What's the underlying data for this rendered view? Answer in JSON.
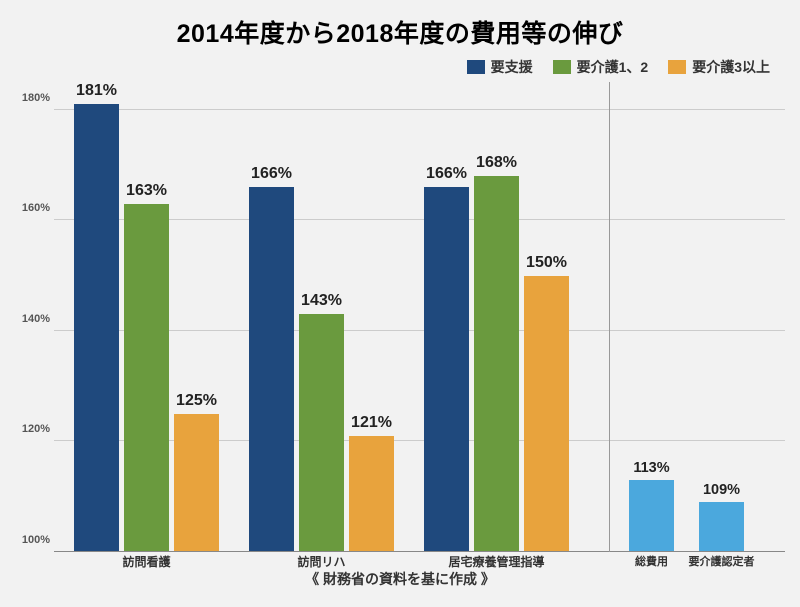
{
  "title": "2014年度から2018年度の費用等の伸び",
  "footer": "《 財務省の資料を基に作成 》",
  "chart": {
    "type": "bar",
    "background_color": "#f2f2f2",
    "grid_color": "#cccccc",
    "baseline_color": "#888888",
    "text_color": "#333333",
    "ylim": [
      100,
      185
    ],
    "yticks": [
      100,
      120,
      140,
      160,
      180
    ],
    "ytick_labels": [
      "100%",
      "120%",
      "140%",
      "160%",
      "180%"
    ],
    "legend": [
      {
        "label": "要支援",
        "color": "#1f497d"
      },
      {
        "label": "要介護1、2",
        "color": "#6a9a3e"
      },
      {
        "label": "要介護3以上",
        "color": "#e8a33d"
      }
    ],
    "groups": [
      {
        "label": "訪問看護",
        "bars": [
          {
            "value": 181,
            "label": "181%",
            "color": "#1f497d"
          },
          {
            "value": 163,
            "label": "163%",
            "color": "#6a9a3e"
          },
          {
            "value": 125,
            "label": "125%",
            "color": "#e8a33d"
          }
        ]
      },
      {
        "label": "訪問リハ",
        "bars": [
          {
            "value": 166,
            "label": "166%",
            "color": "#1f497d"
          },
          {
            "value": 143,
            "label": "143%",
            "color": "#6a9a3e"
          },
          {
            "value": 121,
            "label": "121%",
            "color": "#e8a33d"
          }
        ]
      },
      {
        "label": "居宅療養管理指導",
        "bars": [
          {
            "value": 166,
            "label": "166%",
            "color": "#1f497d"
          },
          {
            "value": 168,
            "label": "168%",
            "color": "#6a9a3e"
          },
          {
            "value": 150,
            "label": "150%",
            "color": "#e8a33d"
          }
        ]
      }
    ],
    "extra_bars": [
      {
        "label": "総費用",
        "value": 113,
        "display": "113%",
        "color": "#4ba8dd"
      },
      {
        "label": "要介護認定者",
        "value": 109,
        "display": "109%",
        "color": "#4ba8dd"
      }
    ],
    "bar_label_fontsize": 16,
    "bar_label_fontsize_small": 14.5,
    "title_fontsize": 25,
    "xlabel_fontsize": 12
  }
}
